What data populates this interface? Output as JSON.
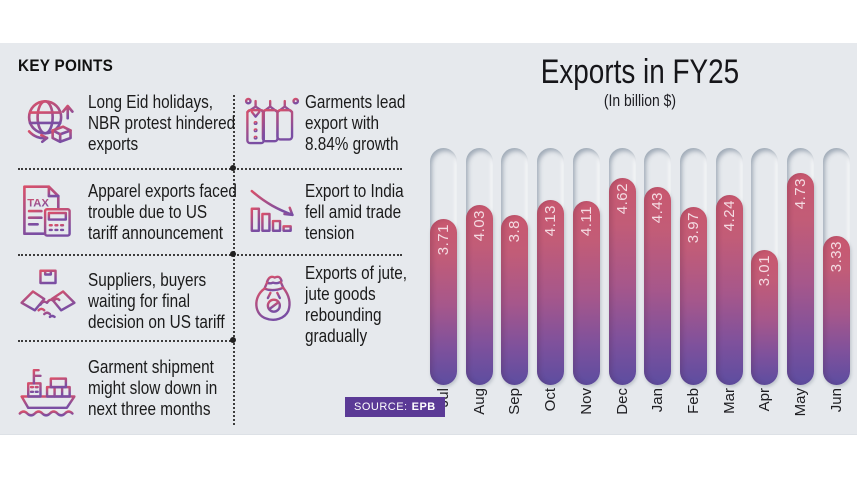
{
  "key_points": {
    "heading": "KEY POINTS",
    "items": [
      {
        "icon": "globe-export-icon",
        "text": "Long Eid holidays,\nNBR protest hindered\nexports"
      },
      {
        "icon": "garments-icon",
        "text": "Garments lead\nexport with\n8.84% growth"
      },
      {
        "icon": "tax-document-icon",
        "text": "Apparel exports faced\ntrouble due to US\ntariff announcement"
      },
      {
        "icon": "declining-chart-icon",
        "text": "Export to India\nfell amid trade\ntension"
      },
      {
        "icon": "handshake-icon",
        "text": "Suppliers, buyers\nwaiting for final\ndecision on US tariff"
      },
      {
        "icon": "jute-sack-icon",
        "text": "Exports of jute,\njute goods\nrebounding\ngradually"
      },
      {
        "icon": "cargo-ship-icon",
        "text": "Garment shipment\nmight slow down in\nnext three months"
      }
    ]
  },
  "chart_data": {
    "type": "bar",
    "title": "Exports in FY25",
    "subtitle": "(In billion $)",
    "categories": [
      "Jul",
      "Aug",
      "Sep",
      "Oct",
      "Nov",
      "Dec",
      "Jan",
      "Feb",
      "Mar",
      "Apr",
      "May",
      "Jun"
    ],
    "values": [
      3.71,
      4.03,
      3.8,
      4.13,
      4.11,
      4.62,
      4.43,
      3.97,
      4.24,
      3.01,
      4.73,
      3.33
    ],
    "ylim": [
      0,
      5.3
    ],
    "orientation": "vertical",
    "grid": false,
    "legend": "none",
    "value_labels": "inside-top, rotated 90deg",
    "bar_top_color": "#c9586f",
    "bar_bottom_color": "#5d4da0",
    "value_label_color": "#f4dbe2",
    "track_background": true
  },
  "source": {
    "label": "SOURCE:",
    "value": "EPB",
    "badge_color": "#5b3a96"
  },
  "colors": {
    "panel_bg": "#e6e9ed",
    "text": "#1b1b1b",
    "dotted_line": "#3c3c3c"
  }
}
